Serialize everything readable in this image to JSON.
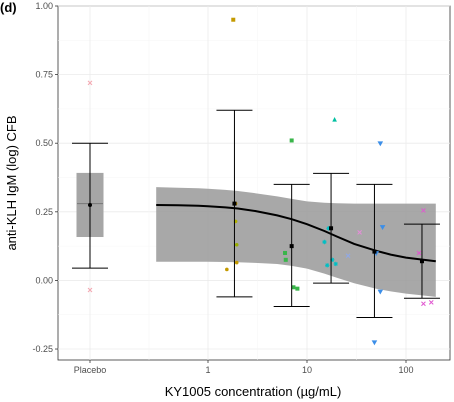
{
  "panel_label": "(d)",
  "chart_data": {
    "type": "scatter",
    "xlabel": "KY1005 concentration (µg/mL)",
    "ylabel": "anti-KLH IgM (log) CFB",
    "x_scale": "log",
    "x_tick_labels": [
      "Placebo",
      "1",
      "10",
      "100"
    ],
    "y_ticks": [
      -0.25,
      0.0,
      0.25,
      0.5,
      0.75,
      1.0
    ],
    "y_tick_labels": [
      "-0.25",
      "0.00",
      "0.25",
      "0.50",
      "0.75",
      "1.00"
    ],
    "ylim": [
      -0.29,
      1.0
    ],
    "grid": true,
    "placebo": {
      "box": {
        "q1": 0.16,
        "median": 0.28,
        "q3": 0.39
      },
      "errorbar": {
        "mean": 0.275,
        "low": 0.045,
        "high": 0.5
      },
      "points": [
        {
          "y": 0.72,
          "color": "#f4a6b0"
        },
        {
          "y": -0.035,
          "color": "#f4a6b0"
        }
      ]
    },
    "model_fit": {
      "x": [
        0.3,
        0.5,
        0.8,
        1,
        1.5,
        2,
        3,
        5,
        7,
        10,
        15,
        20,
        30,
        50,
        70,
        100,
        150,
        200
      ],
      "y": [
        0.275,
        0.274,
        0.272,
        0.27,
        0.266,
        0.262,
        0.253,
        0.237,
        0.223,
        0.205,
        0.18,
        0.16,
        0.133,
        0.108,
        0.094,
        0.083,
        0.075,
        0.07
      ],
      "ci_low": [
        0.068,
        0.068,
        0.068,
        0.068,
        0.067,
        0.066,
        0.064,
        0.06,
        0.053,
        0.043,
        0.025,
        0.01,
        -0.01,
        -0.03,
        -0.04,
        -0.048,
        -0.055,
        -0.06
      ],
      "ci_high": [
        0.34,
        0.338,
        0.336,
        0.334,
        0.33,
        0.326,
        0.318,
        0.306,
        0.297,
        0.288,
        0.283,
        0.281,
        0.28,
        0.28,
        0.28,
        0.28,
        0.28,
        0.28
      ]
    },
    "binned_means": [
      {
        "x": 1.85,
        "mean": 0.28,
        "low": -0.06,
        "high": 0.62
      },
      {
        "x": 7.0,
        "mean": 0.125,
        "low": -0.095,
        "high": 0.35
      },
      {
        "x": 17.5,
        "mean": 0.19,
        "low": -0.01,
        "high": 0.39
      },
      {
        "x": 48.0,
        "mean": 0.105,
        "low": -0.135,
        "high": 0.35
      },
      {
        "x": 145.0,
        "mean": 0.07,
        "low": -0.065,
        "high": 0.205
      }
    ],
    "observations": [
      {
        "x": 1.8,
        "y": 0.95,
        "color": "#c49a00",
        "shape": "square"
      },
      {
        "x": 1.9,
        "y": 0.28,
        "color": "#c49a00",
        "shape": "circle"
      },
      {
        "x": 1.9,
        "y": 0.215,
        "color": "#b0b000",
        "shape": "circle"
      },
      {
        "x": 1.95,
        "y": 0.13,
        "color": "#9aae00",
        "shape": "circle"
      },
      {
        "x": 1.95,
        "y": 0.065,
        "color": "#c49a00",
        "shape": "circle"
      },
      {
        "x": 1.55,
        "y": 0.04,
        "color": "#c49a00",
        "shape": "circle"
      },
      {
        "x": 7.0,
        "y": 0.51,
        "color": "#39b54a",
        "shape": "square"
      },
      {
        "x": 6.0,
        "y": 0.1,
        "color": "#39b54a",
        "shape": "square"
      },
      {
        "x": 6.1,
        "y": 0.075,
        "color": "#39b54a",
        "shape": "square"
      },
      {
        "x": 7.3,
        "y": -0.025,
        "color": "#39b54a",
        "shape": "square"
      },
      {
        "x": 8.0,
        "y": -0.03,
        "color": "#39b54a",
        "shape": "square"
      },
      {
        "x": 19.0,
        "y": 0.585,
        "color": "#00bfa0",
        "shape": "triangle"
      },
      {
        "x": 16.5,
        "y": 0.19,
        "color": "#00bfc4",
        "shape": "star"
      },
      {
        "x": 15.0,
        "y": 0.14,
        "color": "#00bfc4",
        "shape": "star"
      },
      {
        "x": 18.0,
        "y": 0.075,
        "color": "#00bfc4",
        "shape": "star"
      },
      {
        "x": 19.5,
        "y": 0.06,
        "color": "#00bfc4",
        "shape": "star"
      },
      {
        "x": 16.0,
        "y": 0.055,
        "color": "#00bfc4",
        "shape": "star"
      },
      {
        "x": 26.0,
        "y": 0.09,
        "color": "#8fa8e8",
        "shape": "x"
      },
      {
        "x": 55.0,
        "y": 0.5,
        "color": "#3b8ee8",
        "shape": "triangle-down"
      },
      {
        "x": 58.0,
        "y": 0.195,
        "color": "#3b8ee8",
        "shape": "triangle-down"
      },
      {
        "x": 50.0,
        "y": 0.1,
        "color": "#3b8ee8",
        "shape": "triangle-down"
      },
      {
        "x": 55.0,
        "y": -0.04,
        "color": "#3b8ee8",
        "shape": "triangle-down"
      },
      {
        "x": 48.0,
        "y": -0.225,
        "color": "#3b8ee8",
        "shape": "triangle-down"
      },
      {
        "x": 34.0,
        "y": 0.175,
        "color": "#e58cd8",
        "shape": "x"
      },
      {
        "x": 150.0,
        "y": 0.255,
        "color": "#e058d0",
        "shape": "x"
      },
      {
        "x": 135.0,
        "y": 0.1,
        "color": "#e058d0",
        "shape": "x"
      },
      {
        "x": 150.0,
        "y": -0.085,
        "color": "#e058d0",
        "shape": "x"
      },
      {
        "x": 180.0,
        "y": -0.08,
        "color": "#e058d0",
        "shape": "x"
      }
    ]
  }
}
